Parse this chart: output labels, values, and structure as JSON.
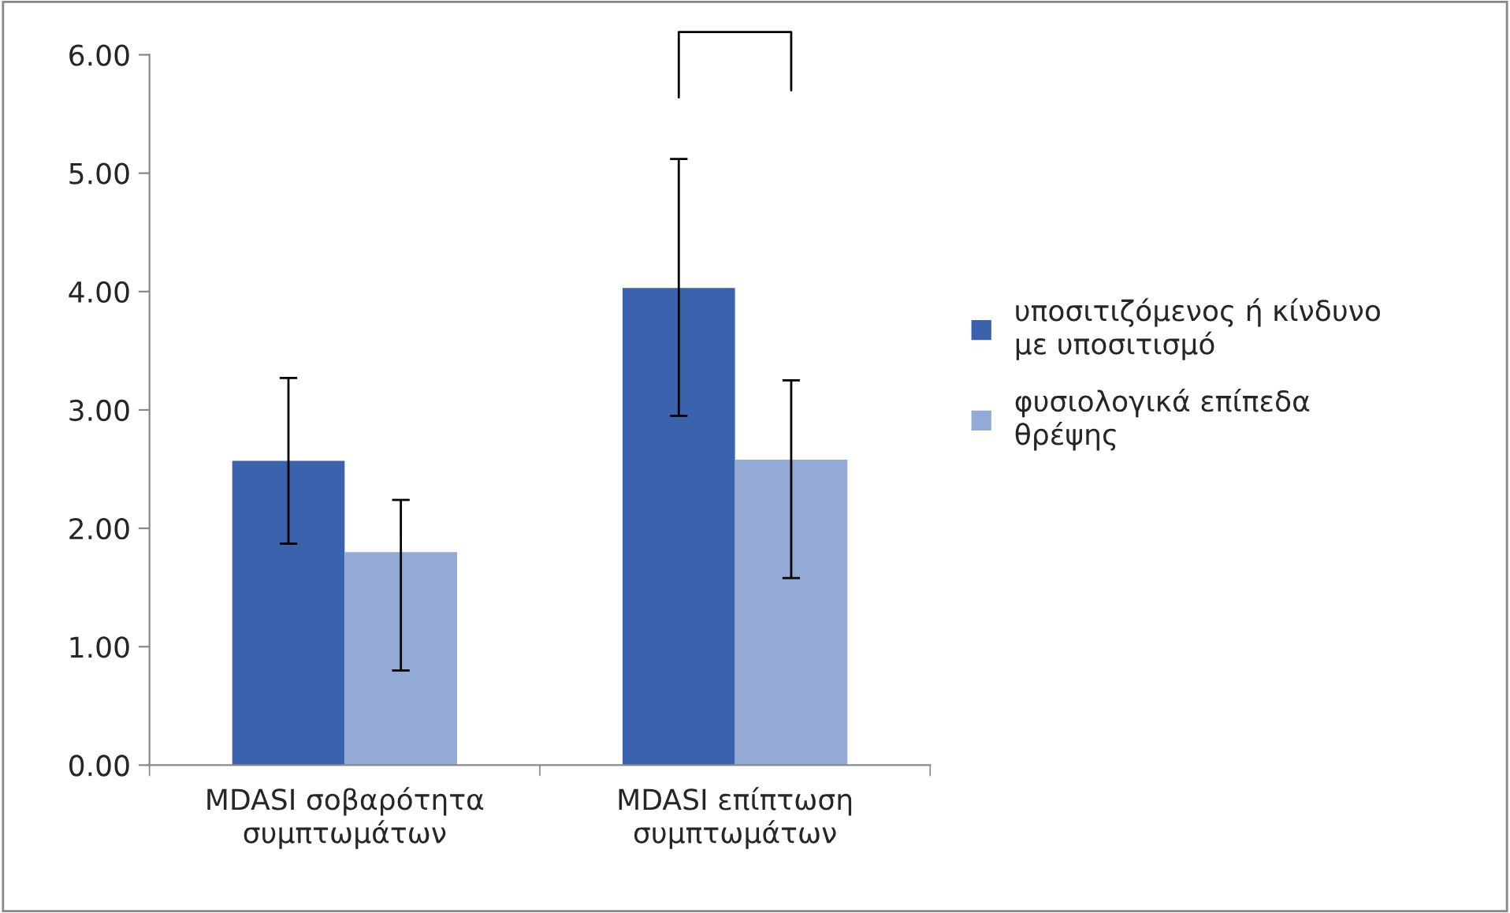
{
  "chart_data": {
    "type": "bar",
    "categories": [
      "MDASI σοβαρότητα\nσυμπτωμάτων",
      "MDASI επίπτωση\nσυμπτωμάτων"
    ],
    "series": [
      {
        "name": "υποσιτιζόμενος ή κίνδυνο\nμε υποσιτισμό",
        "color": "#3a62ad",
        "values": [
          2.57,
          4.03
        ],
        "errors": [
          [
            1.87,
            3.27
          ],
          [
            2.95,
            5.12
          ]
        ]
      },
      {
        "name": "φυσιολογικά επίπεδα\nθρέψης",
        "color": "#93a9d6",
        "values": [
          1.8,
          2.58
        ],
        "errors": [
          [
            0.8,
            2.24
          ],
          [
            1.58,
            3.25
          ]
        ]
      }
    ],
    "ylim": [
      0,
      6
    ],
    "yticks": [
      {
        "value": 0,
        "label": "0.00"
      },
      {
        "value": 1,
        "label": "1.00"
      },
      {
        "value": 2,
        "label": "2.00"
      },
      {
        "value": 3,
        "label": "3.00"
      },
      {
        "value": 4,
        "label": "4.00"
      },
      {
        "value": 5,
        "label": "5.00"
      },
      {
        "value": 6,
        "label": "6.00"
      }
    ],
    "grid": false,
    "legend": "right"
  }
}
